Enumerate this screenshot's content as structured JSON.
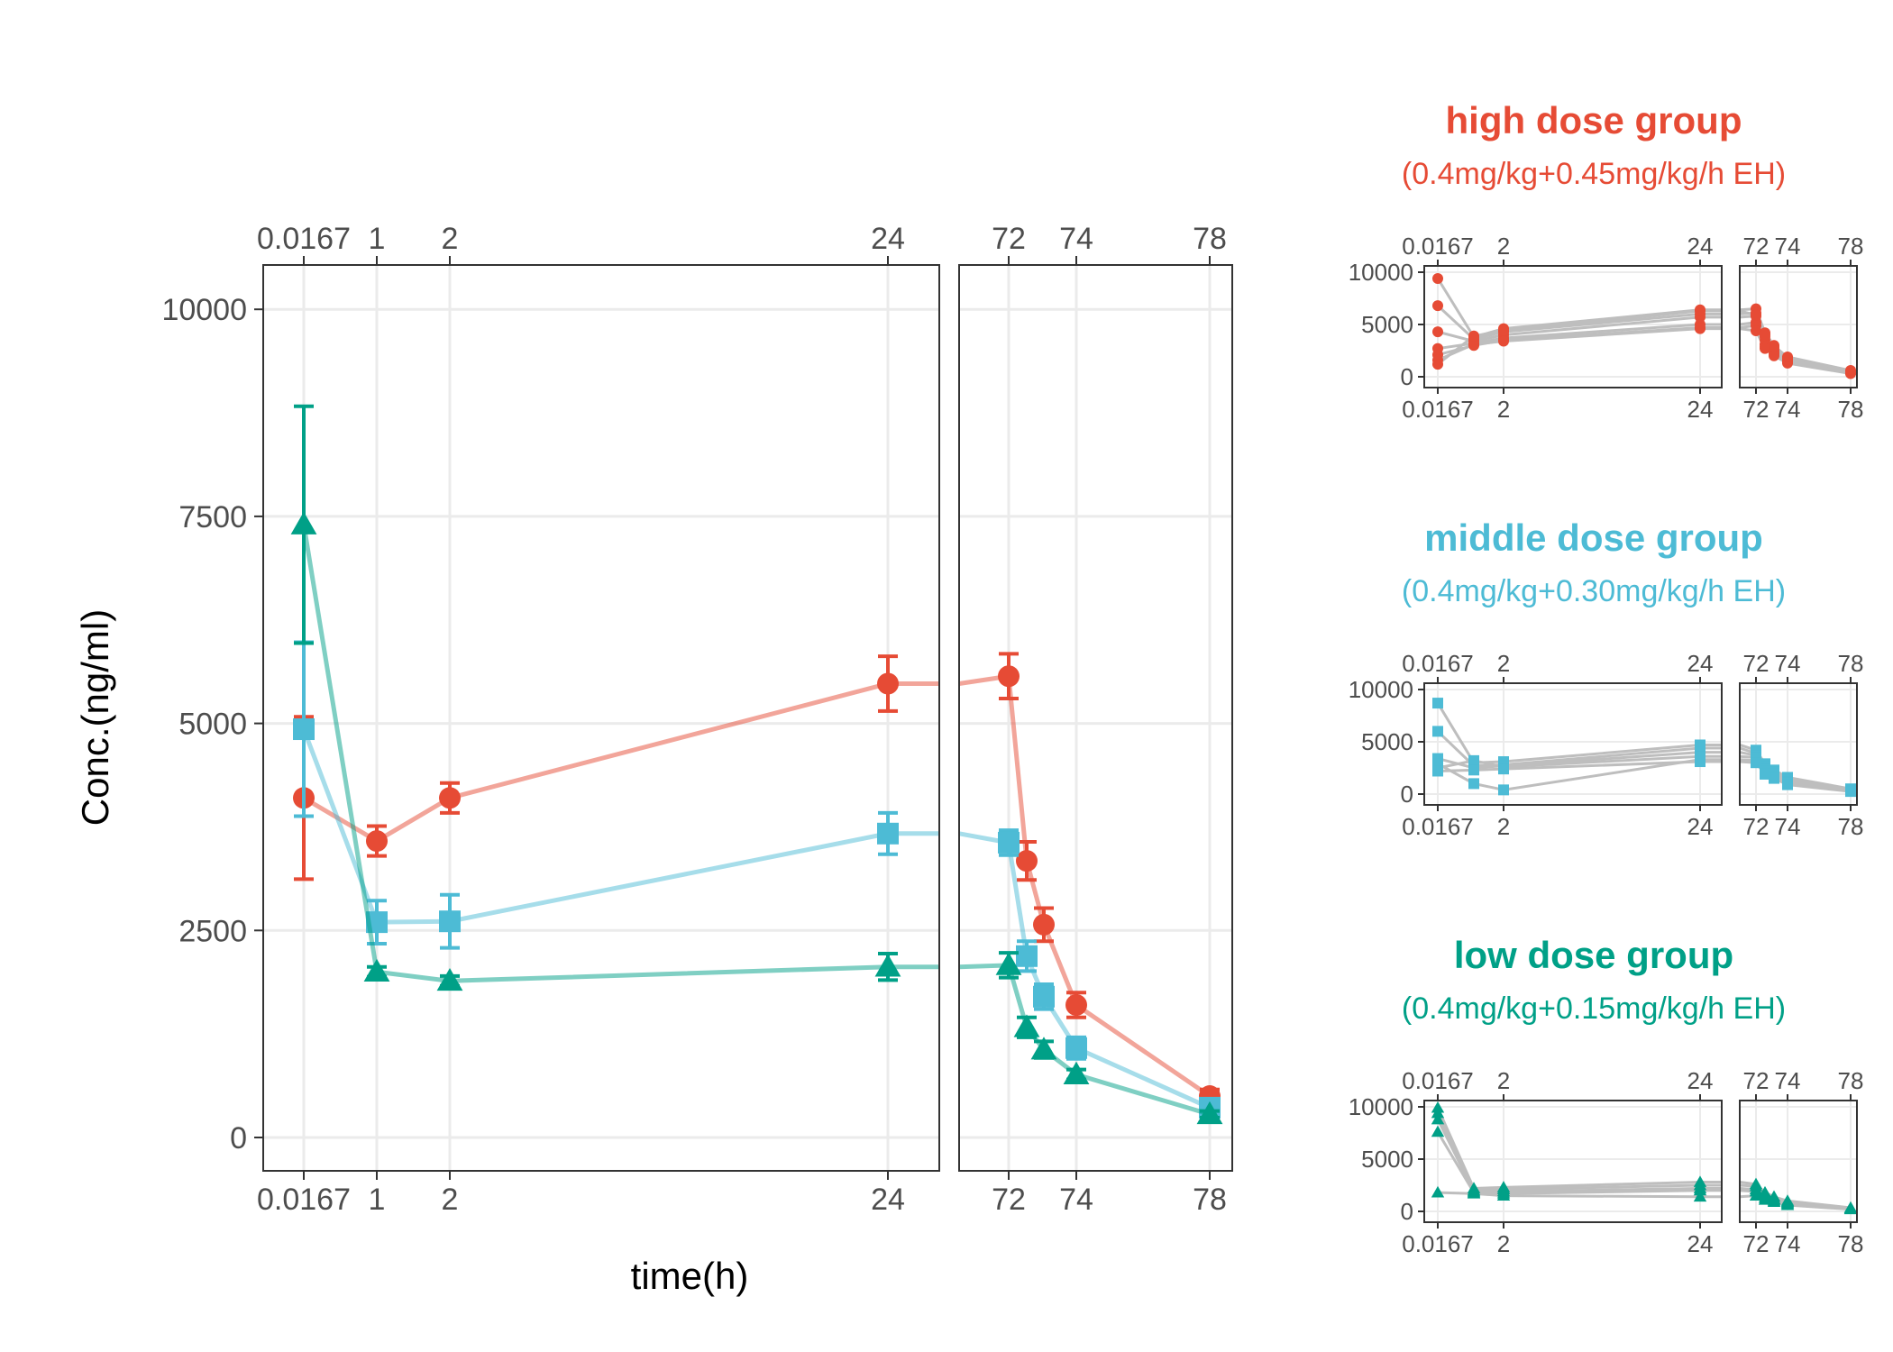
{
  "colors": {
    "high": "#E64B35",
    "middle": "#4DBBD5",
    "low": "#00A087",
    "individual": "#BEBEBE",
    "grid": "#EBEBEB",
    "panel_border": "#333333"
  },
  "chart_data": [
    {
      "type": "line",
      "title": "",
      "xlabel": "time(h)",
      "ylabel": "Conc.(ng/ml)",
      "x_breaks_left": [
        "0.0167",
        "1",
        "2",
        "24"
      ],
      "x_breaks_right": [
        "72",
        "74",
        "78"
      ],
      "x_tick_labels_top": [
        "0.0167",
        "1",
        "2",
        "24",
        "72",
        "74",
        "78"
      ],
      "x_tick_labels_bottom": [
        "0.0167",
        "1",
        "2",
        "24",
        "72",
        "74",
        "78"
      ],
      "y_tick_labels": [
        "0",
        "2500",
        "5000",
        "7500",
        "10000"
      ],
      "ylim": [
        -500,
        10500
      ],
      "grid": true,
      "legend": "none",
      "series": [
        {
          "group": "high",
          "marker": "circle",
          "x": [
            0.0167,
            1,
            2,
            24,
            72,
            72.5,
            73,
            74,
            78
          ],
          "y": [
            4100,
            3580,
            4100,
            5480,
            5570,
            3340,
            2570,
            1600,
            500
          ],
          "err": [
            980,
            180,
            180,
            330,
            270,
            230,
            200,
            150,
            80
          ]
        },
        {
          "group": "middle",
          "marker": "square",
          "x": [
            0.0167,
            1,
            2,
            24,
            72,
            72.5,
            73,
            74,
            78
          ],
          "y": [
            4930,
            2600,
            2610,
            3670,
            3560,
            2190,
            1700,
            1080,
            360
          ],
          "err": [
            1050,
            260,
            320,
            250,
            150,
            180,
            150,
            130,
            60
          ]
        },
        {
          "group": "low",
          "marker": "triangle",
          "x": [
            0.0167,
            1,
            2,
            24,
            72,
            72.5,
            73,
            74,
            78
          ],
          "y": [
            7400,
            2000,
            1890,
            2060,
            2080,
            1330,
            1060,
            760,
            280
          ],
          "err": [
            1430,
            60,
            60,
            160,
            150,
            120,
            100,
            60,
            40
          ]
        }
      ]
    },
    {
      "type": "line",
      "title": "high dose group",
      "subtitle": "(0.4mg/kg+0.45mg/kg/h EH)",
      "group": "high",
      "marker": "circle",
      "x_tick_labels": [
        "0.0167",
        "2",
        "24",
        "72",
        "74",
        "78"
      ],
      "y_tick_labels": [
        "0",
        "5000",
        "10000"
      ],
      "ylim": [
        -500,
        10500
      ],
      "subjects": [
        {
          "x": [
            0.0167,
            1,
            2,
            24,
            72,
            72.5,
            73,
            74,
            78
          ],
          "y": [
            9400,
            3800,
            4600,
            6400,
            6500,
            4200,
            3000,
            1800,
            500
          ]
        },
        {
          "x": [
            0.0167,
            1,
            2,
            24,
            72,
            72.5,
            73,
            74,
            78
          ],
          "y": [
            6800,
            3600,
            4300,
            6000,
            6100,
            3800,
            2800,
            1700,
            450
          ]
        },
        {
          "x": [
            0.0167,
            1,
            2,
            24,
            72,
            72.5,
            73,
            74,
            78
          ],
          "y": [
            4300,
            3400,
            4000,
            5700,
            5800,
            3500,
            2600,
            1600,
            400
          ]
        },
        {
          "x": [
            0.0167,
            1,
            2,
            24,
            72,
            72.5,
            73,
            74,
            78
          ],
          "y": [
            2700,
            3200,
            3700,
            5000,
            5200,
            3100,
            2400,
            1500,
            380
          ]
        },
        {
          "x": [
            0.0167,
            1,
            2,
            24,
            72,
            72.5,
            73,
            74,
            78
          ],
          "y": [
            2100,
            3000,
            3500,
            4700,
            4900,
            2900,
            2200,
            1400,
            350
          ]
        },
        {
          "x": [
            0.0167,
            1,
            2,
            24,
            72,
            72.5,
            73,
            74,
            78
          ],
          "y": [
            1600,
            3100,
            3400,
            4600,
            4400,
            2700,
            2000,
            1300,
            300
          ]
        },
        {
          "x": [
            0.0167,
            1,
            2,
            24,
            72,
            72.5,
            73,
            74,
            78
          ],
          "y": [
            1200,
            3900,
            4400,
            6300,
            5900,
            4000,
            2900,
            1900,
            600
          ]
        }
      ]
    },
    {
      "type": "line",
      "title": "middle dose group",
      "subtitle": "(0.4mg/kg+0.30mg/kg/h EH)",
      "group": "middle",
      "marker": "square",
      "x_tick_labels": [
        "0.0167",
        "2",
        "24",
        "72",
        "74",
        "78"
      ],
      "y_tick_labels": [
        "0",
        "5000",
        "10000"
      ],
      "ylim": [
        -500,
        10500
      ],
      "subjects": [
        {
          "x": [
            0.0167,
            1,
            2,
            24,
            72,
            72.5,
            73,
            74,
            78
          ],
          "y": [
            8700,
            3000,
            3100,
            4700,
            4200,
            2900,
            2300,
            1600,
            500
          ]
        },
        {
          "x": [
            0.0167,
            1,
            2,
            24,
            72,
            72.5,
            73,
            74,
            78
          ],
          "y": [
            6000,
            2700,
            2800,
            4400,
            3900,
            2600,
            2100,
            1400,
            450
          ]
        },
        {
          "x": [
            0.0167,
            1,
            2,
            24,
            72,
            72.5,
            73,
            74,
            78
          ],
          "y": [
            3400,
            2500,
            2700,
            4000,
            3700,
            2400,
            1900,
            1200,
            400
          ]
        },
        {
          "x": [
            0.0167,
            1,
            2,
            24,
            72,
            72.5,
            73,
            74,
            78
          ],
          "y": [
            2900,
            1000,
            400,
            3300,
            3200,
            2000,
            1600,
            1000,
            300
          ]
        },
        {
          "x": [
            0.0167,
            1,
            2,
            24,
            72,
            72.5,
            73,
            74,
            78
          ],
          "y": [
            2500,
            3200,
            2600,
            3600,
            3500,
            2200,
            1700,
            1100,
            350
          ]
        },
        {
          "x": [
            0.0167,
            1,
            2,
            24,
            72,
            72.5,
            73,
            74,
            78
          ],
          "y": [
            2200,
            2300,
            2400,
            3100,
            3000,
            1900,
            1500,
            900,
            250
          ]
        }
      ]
    },
    {
      "type": "line",
      "title": "low dose group",
      "subtitle": "(0.4mg/kg+0.15mg/kg/h EH)",
      "group": "low",
      "marker": "triangle",
      "x_tick_labels": [
        "0.0167",
        "2",
        "24",
        "72",
        "74",
        "78"
      ],
      "y_tick_labels": [
        "0",
        "5000",
        "10000"
      ],
      "ylim": [
        -500,
        10500
      ],
      "subjects": [
        {
          "x": [
            0.0167,
            1,
            2,
            24,
            72,
            72.5,
            73,
            74,
            78
          ],
          "y": [
            9900,
            2200,
            2300,
            2800,
            2600,
            1800,
            1400,
            1000,
            350
          ]
        },
        {
          "x": [
            0.0167,
            1,
            2,
            24,
            72,
            72.5,
            73,
            74,
            78
          ],
          "y": [
            9400,
            2000,
            2100,
            2500,
            2400,
            1600,
            1200,
            900,
            300
          ]
        },
        {
          "x": [
            0.0167,
            1,
            2,
            24,
            72,
            72.5,
            73,
            74,
            78
          ],
          "y": [
            8800,
            1900,
            1900,
            2200,
            2100,
            1500,
            1100,
            800,
            280
          ]
        },
        {
          "x": [
            0.0167,
            1,
            2,
            24,
            72,
            72.5,
            73,
            74,
            78
          ],
          "y": [
            7600,
            1800,
            1700,
            2000,
            1900,
            1300,
            1000,
            700,
            250
          ]
        },
        {
          "x": [
            0.0167,
            1,
            2,
            24,
            72,
            72.5,
            73,
            74,
            78
          ],
          "y": [
            1800,
            1700,
            1500,
            1400,
            1500,
            1100,
            900,
            600,
            200
          ]
        }
      ]
    }
  ]
}
